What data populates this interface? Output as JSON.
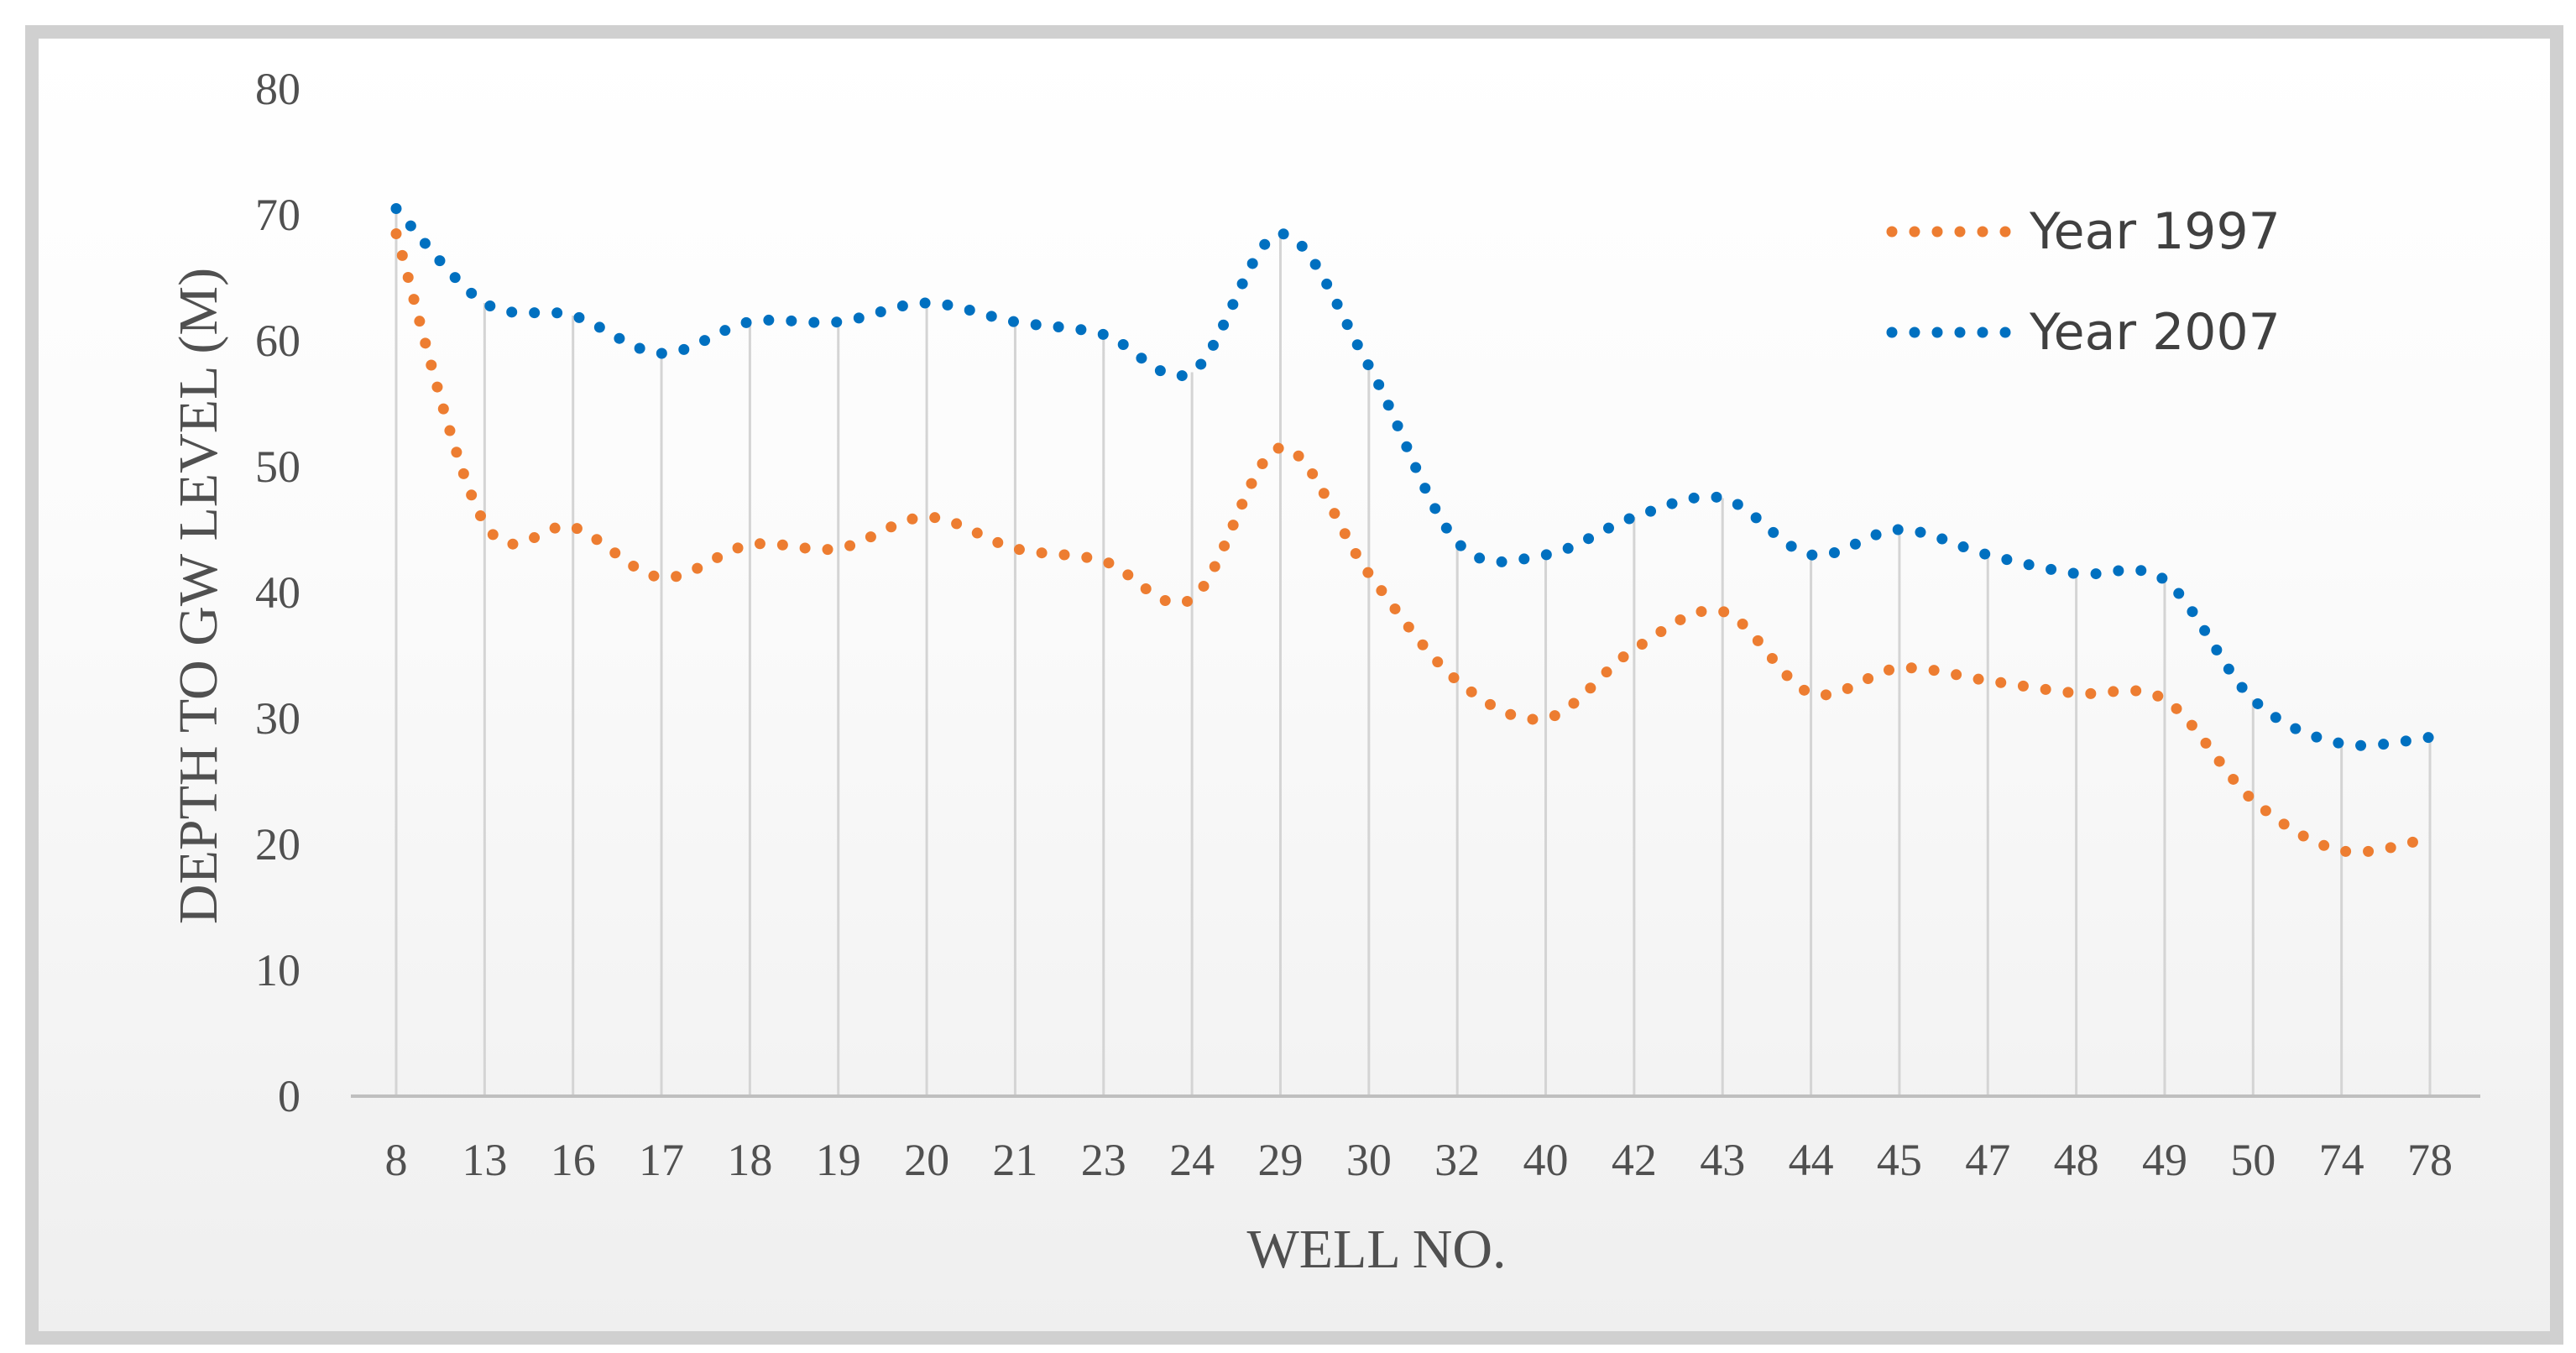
{
  "chart_data": {
    "type": "line",
    "xlabel": "WELL NO.",
    "ylabel": "DEPTH TO GW LEVEL (M)",
    "ylim": [
      0,
      80
    ],
    "yticks": [
      "0",
      "10",
      "20",
      "30",
      "40",
      "50",
      "60",
      "70",
      "80"
    ],
    "categories": [
      "8",
      "13",
      "16",
      "17",
      "18",
      "19",
      "20",
      "21",
      "23",
      "24",
      "29",
      "30",
      "32",
      "40",
      "42",
      "43",
      "44",
      "45",
      "47",
      "48",
      "49",
      "50",
      "74",
      "78"
    ],
    "series": [
      {
        "name": "Year 1997",
        "color": "#ED7D31",
        "style": "dotted",
        "values": [
          68.5,
          45.5,
          45.2,
          41.2,
          43.8,
          43.5,
          46.0,
          43.5,
          42.5,
          39.5,
          51.5,
          41.5,
          33.0,
          30.0,
          35.5,
          38.5,
          32.0,
          34.0,
          33.0,
          32.0,
          31.5,
          23.5,
          19.5,
          20.5
        ]
      },
      {
        "name": "Year 2007",
        "color": "#0070C0",
        "style": "dotted",
        "values": [
          70.5,
          63.0,
          62.0,
          59.0,
          61.5,
          61.5,
          63.0,
          61.5,
          60.5,
          57.5,
          68.5,
          58.0,
          44.0,
          43.0,
          46.0,
          47.5,
          43.0,
          45.0,
          43.0,
          41.5,
          41.0,
          31.5,
          28.0,
          28.5
        ]
      }
    ],
    "grid": "vertical",
    "legend_position": "top-right"
  }
}
